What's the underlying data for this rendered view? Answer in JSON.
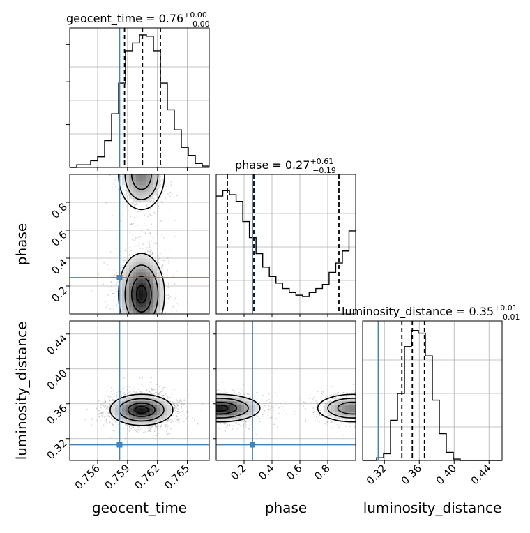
{
  "colors": {
    "truth": "#4682b4",
    "line": "#000000",
    "grid": "#b0b0b0",
    "contour_fill": "#666666"
  },
  "chart_data": {
    "type": "corner",
    "parameters": [
      "geocent_time",
      "phase",
      "luminosity_distance"
    ],
    "truths": {
      "geocent_time": 0.7582,
      "phase": 0.26,
      "luminosity_distance": 0.313
    },
    "titles": {
      "geocent_time": {
        "name": "geocent_time",
        "median": "0.76",
        "plus": "+0.00",
        "minus": "−0.00"
      },
      "phase": {
        "name": "phase",
        "median": "0.27",
        "plus": "+0.61",
        "minus": "−0.19"
      },
      "luminosity_distance": {
        "name": "luminosity_distance",
        "median": "0.35",
        "plus": "+0.01",
        "minus": "−0.01"
      }
    },
    "axes": {
      "geocent_time": {
        "lim": [
          0.7532,
          0.7672
        ],
        "ticks": [
          0.756,
          0.759,
          0.762,
          0.765
        ],
        "ticklabels": [
          "0.756",
          "0.759",
          "0.762",
          "0.765"
        ],
        "xlabel": "geocent_time"
      },
      "phase": {
        "lim": [
          0.0,
          1.0
        ],
        "ticks": [
          0.2,
          0.4,
          0.6,
          0.8
        ],
        "ticklabels": [
          "0.2",
          "0.4",
          "0.6",
          "0.8"
        ],
        "xlabel": "phase",
        "ylabel": "phase"
      },
      "luminosity_distance": {
        "lim": [
          0.295,
          0.455
        ],
        "ticks": [
          0.32,
          0.36,
          0.4,
          0.44
        ],
        "ticklabels": [
          "0.32",
          "0.36",
          "0.40",
          "0.44"
        ],
        "xlabel": "luminosity_distance",
        "ylabel": "luminosity_distance"
      }
    },
    "histograms": {
      "geocent_time": {
        "edges_lim": [
          0.7532,
          0.7672
        ],
        "counts": [
          0,
          0.02,
          0.02,
          0.05,
          0.08,
          0.2,
          0.4,
          0.63,
          0.87,
          0.93,
          0.99,
          0.98,
          0.87,
          0.63,
          0.43,
          0.28,
          0.15,
          0.09,
          0.03,
          0.01
        ],
        "quantiles": [
          0.7587,
          0.7605,
          0.7623
        ]
      },
      "phase": {
        "edges_lim": [
          0.0,
          1.0
        ],
        "counts": [
          0.88,
          0.92,
          0.89,
          0.84,
          0.69,
          0.57,
          0.45,
          0.35,
          0.28,
          0.23,
          0.19,
          0.16,
          0.14,
          0.13,
          0.16,
          0.19,
          0.22,
          0.31,
          0.38,
          0.47,
          0.62
        ],
        "quantiles": [
          0.08,
          0.27,
          0.88
        ]
      },
      "luminosity_distance": {
        "edges_lim": [
          0.295,
          0.455
        ],
        "counts": [
          0,
          0,
          0.02,
          0.05,
          0.3,
          0.5,
          0.85,
          0.97,
          0.95,
          0.78,
          0.45,
          0.2,
          0.06,
          0.01,
          0,
          0,
          0,
          0,
          0,
          0
        ],
        "quantiles": [
          0.34,
          0.352,
          0.366
        ]
      }
    },
    "contours": {
      "phase_vs_geocent_time": {
        "modes": [
          {
            "cx": 0.7604,
            "cy": 0.14,
            "sx": 0.0011,
            "sy": 0.14,
            "w": 1.0
          },
          {
            "cx": 0.7604,
            "cy": 1.0,
            "sx": 0.0011,
            "sy": 0.12,
            "w": 0.55
          }
        ]
      },
      "luminosity_distance_vs_geocent_time": {
        "modes": [
          {
            "cx": 0.7604,
            "cy": 0.353,
            "sx": 0.0015,
            "sy": 0.0085,
            "w": 1.0
          }
        ]
      },
      "luminosity_distance_vs_phase": {
        "modes": [
          {
            "cx": 0.02,
            "cy": 0.355,
            "sx": 0.14,
            "sy": 0.0075,
            "w": 1.0
          },
          {
            "cx": 0.98,
            "cy": 0.355,
            "sx": 0.12,
            "sy": 0.0075,
            "w": 0.55
          }
        ]
      }
    }
  }
}
